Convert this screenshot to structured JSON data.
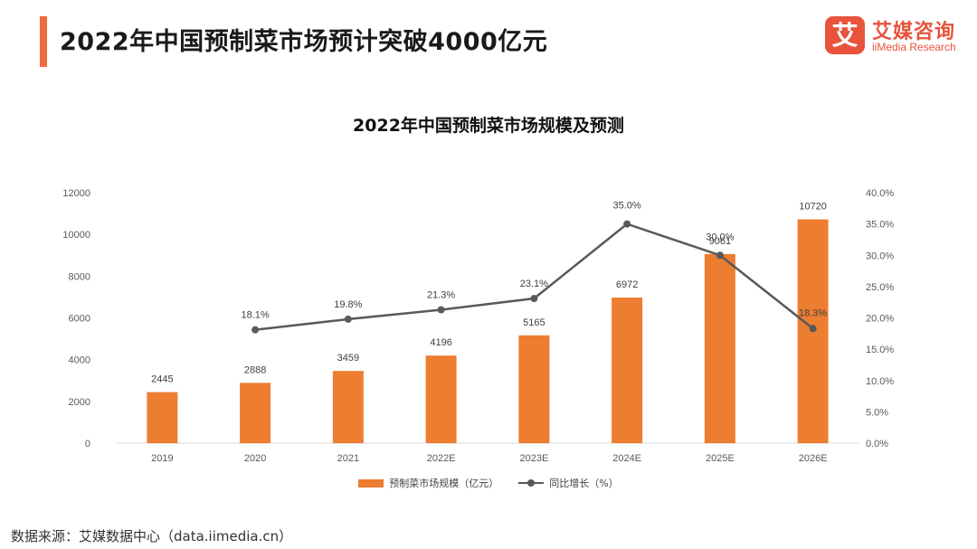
{
  "header": {
    "title": "2022年中国预制菜市场预计突破4000亿元"
  },
  "logo": {
    "mark": "艾",
    "name_cn": "艾媒咨询",
    "name_en": "iiMedia Research"
  },
  "colors": {
    "accent": "#f26b3a",
    "bar": "#ed7d31",
    "line": "#595959",
    "logo": "#e8533c"
  },
  "source": "数据来源：艾媒数据中心（data.iimedia.cn）",
  "chart_data": {
    "type": "bar",
    "title": "2022年中国预制菜市场规模及预测",
    "categories": [
      "2019",
      "2020",
      "2021",
      "2022E",
      "2023E",
      "2024E",
      "2025E",
      "2026E"
    ],
    "series": [
      {
        "name": "预制菜市场规模（亿元）",
        "type": "bar",
        "axis": "left",
        "values": [
          2445,
          2888,
          3459,
          4196,
          5165,
          6972,
          9061,
          10720
        ],
        "labels": [
          "2445",
          "2888",
          "3459",
          "4196",
          "5165",
          "6972",
          "9061",
          "10720"
        ]
      },
      {
        "name": "同比增长（%）",
        "type": "line",
        "axis": "right",
        "values": [
          null,
          18.1,
          19.8,
          21.3,
          23.1,
          35.0,
          30.0,
          18.3
        ],
        "labels": [
          "",
          "18.1%",
          "19.8%",
          "21.3%",
          "23.1%",
          "35.0%",
          "30.0%",
          "18.3%"
        ]
      }
    ],
    "ylim": [
      0,
      12000
    ],
    "y_ticks": [
      "0",
      "2000",
      "4000",
      "6000",
      "8000",
      "10000",
      "12000"
    ],
    "y2lim": [
      0,
      40
    ],
    "y2_ticks": [
      "0.0%",
      "5.0%",
      "10.0%",
      "15.0%",
      "20.0%",
      "25.0%",
      "30.0%",
      "35.0%",
      "40.0%"
    ],
    "grid": false,
    "legend": "bottom-center"
  }
}
